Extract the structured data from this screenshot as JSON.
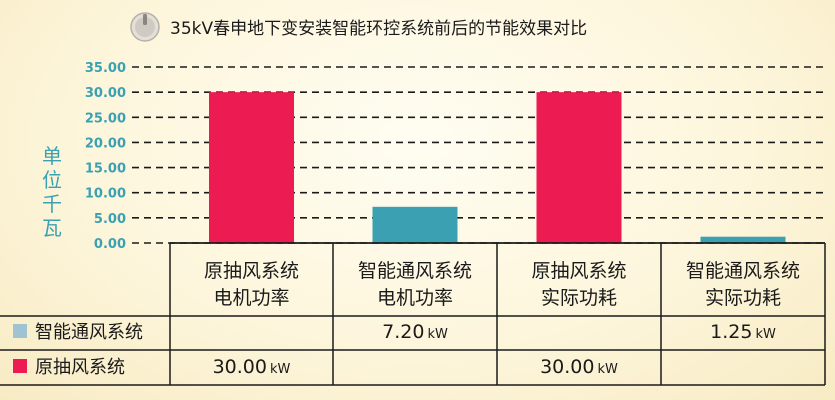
{
  "colors": {
    "accent": "#3ba1b2",
    "orig": "#ec1b52",
    "smart": "#3ba1b2",
    "legend_smart": "#9fc3d1"
  },
  "icon": "power-knob-icon",
  "chart_data": {
    "type": "bar",
    "title": "35kV春申地下变安装智能环控系统前后的节能效果对比",
    "ylabel": "单位千瓦",
    "ylim": [
      0,
      35
    ],
    "yticks": [
      "0.00",
      "5.00",
      "10.00",
      "15.00",
      "20.00",
      "25.00",
      "30.00",
      "35.00"
    ],
    "grid": true,
    "categories": [
      [
        "原抽风系统",
        "电机功率"
      ],
      [
        "智能通风系统",
        "电机功率"
      ],
      [
        "原抽风系统",
        "实际功耗"
      ],
      [
        "智能通风系统",
        "实际功耗"
      ]
    ],
    "bars": [
      {
        "value": 30.0,
        "series": 1
      },
      {
        "value": 7.2,
        "series": 0
      },
      {
        "value": 30.0,
        "series": 1
      },
      {
        "value": 1.25,
        "series": 0
      }
    ],
    "table": {
      "unit": "kW",
      "rows": [
        {
          "label": "智能通风系统",
          "cells": [
            "",
            "7.20",
            "",
            "1.25"
          ]
        },
        {
          "label": "原抽风系统",
          "cells": [
            "30.00",
            "",
            "30.00",
            ""
          ]
        }
      ]
    }
  }
}
